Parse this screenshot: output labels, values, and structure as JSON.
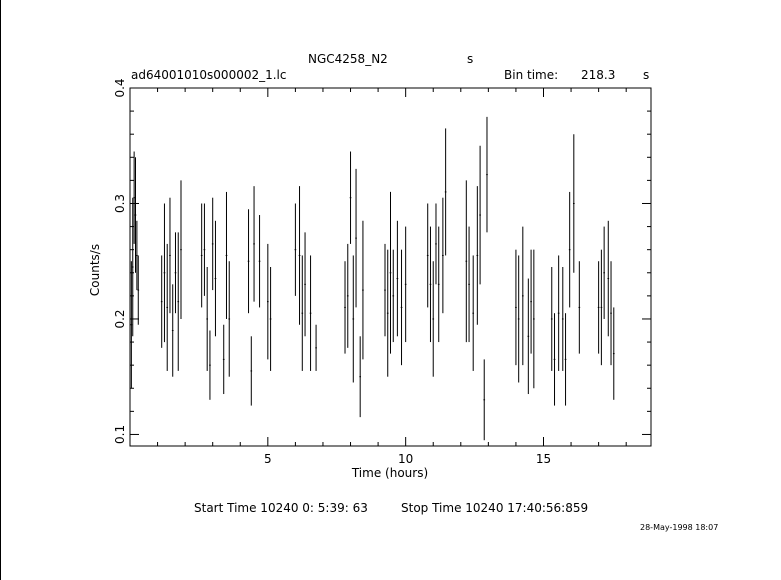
{
  "header": {
    "object": "NGC4258_N2",
    "unit_top": "s",
    "file": "ad64001010s000002_1.lc",
    "bin_label": "Bin time:",
    "bin_value": "218.3",
    "bin_unit": "s"
  },
  "footer": {
    "start_label": "Start Time 10240  0: 5:39: 63",
    "stop_label": "Stop Time 10240 17:40:56:859",
    "date_stamp": "28-May-1998 18:07"
  },
  "chart_data": {
    "type": "scatter",
    "xlabel": "Time (hours)",
    "ylabel": "Counts/s",
    "xlim": [
      0,
      18.9
    ],
    "ylim": [
      0.09,
      0.4
    ],
    "xticks": [
      5,
      10,
      15
    ],
    "yticks": [
      0.1,
      0.2,
      0.3,
      0.4
    ],
    "grid": false,
    "legend": "none",
    "x_err": 0.03,
    "points": [
      [
        0.05,
        0.195,
        0.055
      ],
      [
        0.1,
        0.245,
        0.06
      ],
      [
        0.15,
        0.305,
        0.04
      ],
      [
        0.2,
        0.29,
        0.05
      ],
      [
        0.25,
        0.255,
        0.03
      ],
      [
        0.3,
        0.225,
        0.03
      ],
      [
        1.15,
        0.215,
        0.04
      ],
      [
        1.25,
        0.24,
        0.06
      ],
      [
        1.35,
        0.21,
        0.055
      ],
      [
        1.45,
        0.255,
        0.05
      ],
      [
        1.55,
        0.19,
        0.04
      ],
      [
        1.65,
        0.24,
        0.035
      ],
      [
        1.75,
        0.215,
        0.06
      ],
      [
        1.85,
        0.26,
        0.06
      ],
      [
        2.6,
        0.255,
        0.045
      ],
      [
        2.7,
        0.26,
        0.04
      ],
      [
        2.8,
        0.2,
        0.045
      ],
      [
        2.9,
        0.16,
        0.03
      ],
      [
        3.0,
        0.265,
        0.04
      ],
      [
        3.1,
        0.235,
        0.05
      ],
      [
        3.4,
        0.165,
        0.03
      ],
      [
        3.5,
        0.255,
        0.055
      ],
      [
        3.6,
        0.2,
        0.05
      ],
      [
        4.3,
        0.25,
        0.045
      ],
      [
        4.4,
        0.155,
        0.03
      ],
      [
        4.5,
        0.265,
        0.05
      ],
      [
        4.7,
        0.25,
        0.04
      ],
      [
        5.0,
        0.215,
        0.05
      ],
      [
        5.1,
        0.2,
        0.045
      ],
      [
        6.0,
        0.26,
        0.04
      ],
      [
        6.15,
        0.255,
        0.06
      ],
      [
        6.25,
        0.205,
        0.05
      ],
      [
        6.35,
        0.23,
        0.045
      ],
      [
        6.55,
        0.205,
        0.05
      ],
      [
        6.75,
        0.175,
        0.02
      ],
      [
        7.8,
        0.21,
        0.04
      ],
      [
        7.9,
        0.22,
        0.045
      ],
      [
        8.0,
        0.305,
        0.04
      ],
      [
        8.1,
        0.2,
        0.055
      ],
      [
        8.2,
        0.27,
        0.06
      ],
      [
        8.35,
        0.15,
        0.035
      ],
      [
        8.45,
        0.225,
        0.06
      ],
      [
        9.25,
        0.225,
        0.04
      ],
      [
        9.35,
        0.205,
        0.055
      ],
      [
        9.45,
        0.24,
        0.07
      ],
      [
        9.55,
        0.22,
        0.04
      ],
      [
        9.7,
        0.235,
        0.05
      ],
      [
        9.85,
        0.21,
        0.05
      ],
      [
        10.0,
        0.23,
        0.05
      ],
      [
        10.8,
        0.255,
        0.045
      ],
      [
        10.9,
        0.23,
        0.05
      ],
      [
        11.0,
        0.2,
        0.05
      ],
      [
        11.1,
        0.265,
        0.035
      ],
      [
        11.2,
        0.23,
        0.05
      ],
      [
        11.35,
        0.255,
        0.05
      ],
      [
        11.45,
        0.31,
        0.055
      ],
      [
        12.2,
        0.25,
        0.07
      ],
      [
        12.3,
        0.23,
        0.05
      ],
      [
        12.45,
        0.205,
        0.05
      ],
      [
        12.6,
        0.255,
        0.06
      ],
      [
        12.7,
        0.29,
        0.06
      ],
      [
        12.85,
        0.13,
        0.035
      ],
      [
        12.95,
        0.325,
        0.05
      ],
      [
        14.0,
        0.21,
        0.05
      ],
      [
        14.1,
        0.2,
        0.055
      ],
      [
        14.25,
        0.22,
        0.06
      ],
      [
        14.45,
        0.185,
        0.05
      ],
      [
        14.55,
        0.215,
        0.045
      ],
      [
        14.65,
        0.2,
        0.06
      ],
      [
        15.3,
        0.2,
        0.045
      ],
      [
        15.4,
        0.165,
        0.04
      ],
      [
        15.55,
        0.205,
        0.05
      ],
      [
        15.7,
        0.2,
        0.045
      ],
      [
        15.8,
        0.165,
        0.04
      ],
      [
        15.95,
        0.26,
        0.05
      ],
      [
        16.1,
        0.3,
        0.06
      ],
      [
        16.3,
        0.21,
        0.04
      ],
      [
        17.0,
        0.21,
        0.04
      ],
      [
        17.1,
        0.21,
        0.05
      ],
      [
        17.2,
        0.24,
        0.04
      ],
      [
        17.35,
        0.235,
        0.05
      ],
      [
        17.45,
        0.205,
        0.045
      ],
      [
        17.55,
        0.17,
        0.04
      ]
    ]
  }
}
